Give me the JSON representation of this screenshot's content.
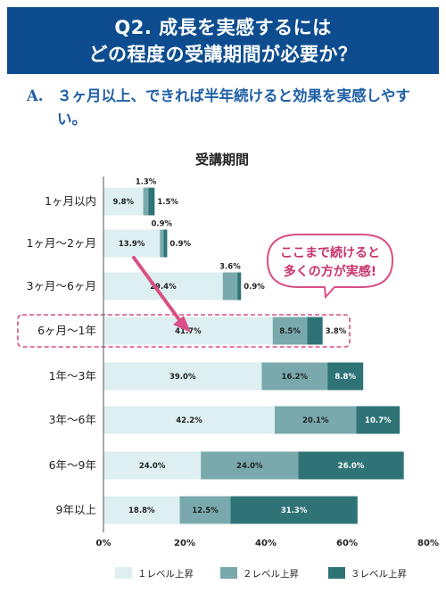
{
  "header": {
    "line1": "Q2. 成長を実感するには",
    "line2": "どの程度の受講期間が必要か？"
  },
  "answer": {
    "label": "A.",
    "text": "３ヶ月以上、できれば半年続けると効果を実感しやすい。"
  },
  "callout": {
    "line1": "ここまで続けると",
    "line2": "多くの方が実感!"
  },
  "colors": {
    "header_bg": "#0d4d8f",
    "series1": "#ddeff0",
    "series2": "#79a9ad",
    "series3": "#2f7377",
    "accent": "#d94f86"
  },
  "chart_data": {
    "type": "bar",
    "orientation": "horizontal",
    "stacked": true,
    "title": "受講期間",
    "categories": [
      "1ヶ月以内",
      "1ヶ月〜2ヶ月",
      "3ヶ月〜6ヶ月",
      "6ヶ月〜1年",
      "1年〜3年",
      "3年〜6年",
      "6年〜9年",
      "9年以上"
    ],
    "series": [
      {
        "name": "１レベル上昇",
        "values": [
          9.8,
          13.9,
          29.4,
          41.7,
          39.0,
          42.2,
          24.0,
          18.8
        ]
      },
      {
        "name": "２レベル上昇",
        "values": [
          1.3,
          0.9,
          3.6,
          8.5,
          16.2,
          20.1,
          24.0,
          12.5
        ]
      },
      {
        "name": "３レベル上昇",
        "values": [
          1.5,
          0.9,
          0.9,
          3.8,
          8.8,
          10.7,
          26.0,
          31.3
        ]
      }
    ],
    "xticks": [
      "0%",
      "20%",
      "40%",
      "60%",
      "80%"
    ],
    "xlim": [
      0,
      80
    ],
    "highlight_category": "6ヶ月〜1年",
    "legend_position": "bottom"
  }
}
